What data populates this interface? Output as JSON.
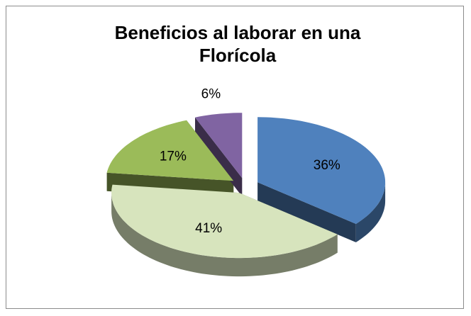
{
  "chart_data": {
    "type": "pie",
    "title": "Beneficios al laborar en una Florícola",
    "values": [
      36,
      41,
      17,
      6
    ],
    "value_labels": [
      "36%",
      "41%",
      "17%",
      "6%"
    ],
    "colors": [
      "#4f81bd",
      "#d7e4bd",
      "#9bbb59",
      "#8064a2"
    ]
  }
}
